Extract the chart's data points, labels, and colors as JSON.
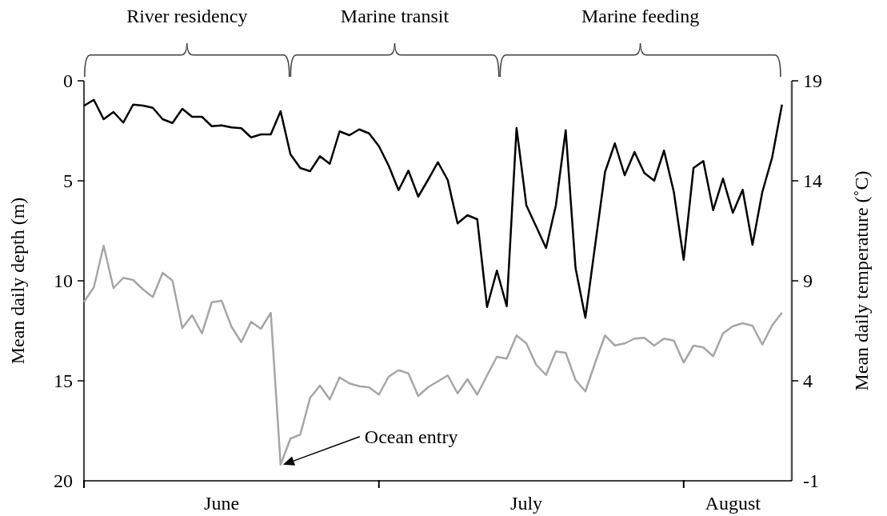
{
  "chart_data": {
    "type": "line",
    "x": [
      "--06-01",
      "--06-02",
      "--06-03",
      "--06-04",
      "--06-05",
      "--06-06",
      "--06-07",
      "--06-08",
      "--06-09",
      "--06-10",
      "--06-11",
      "--06-12",
      "--06-13",
      "--06-14",
      "--06-15",
      "--06-16",
      "--06-17",
      "--06-18",
      "--06-19",
      "--06-20",
      "--06-21",
      "--06-22",
      "--06-23",
      "--06-24",
      "--06-25",
      "--06-26",
      "--06-27",
      "--06-28",
      "--06-29",
      "--06-30",
      "--07-01",
      "--07-02",
      "--07-03",
      "--07-04",
      "--07-05",
      "--07-06",
      "--07-07",
      "--07-08",
      "--07-09",
      "--07-10",
      "--07-11",
      "--07-12",
      "--07-13",
      "--07-14",
      "--07-15",
      "--07-16",
      "--07-17",
      "--07-18",
      "--07-19",
      "--07-20",
      "--07-21",
      "--07-22",
      "--07-23",
      "--07-24",
      "--07-25",
      "--07-26",
      "--07-27",
      "--07-28",
      "--07-29",
      "--07-30",
      "--07-31",
      "--08-01",
      "--08-02",
      "--08-03",
      "--08-04",
      "--08-05",
      "--08-06",
      "--08-07",
      "--08-08",
      "--08-09",
      "--08-10",
      "--08-11"
    ],
    "series": [
      {
        "color": "#000000",
        "values": [
          1.25,
          0.95,
          1.92,
          1.56,
          2.09,
          1.19,
          1.24,
          1.35,
          1.92,
          2.11,
          1.4,
          1.8,
          1.8,
          2.27,
          2.23,
          2.33,
          2.37,
          2.83,
          2.68,
          2.68,
          1.52,
          3.67,
          4.36,
          4.52,
          3.77,
          4.15,
          2.53,
          2.72,
          2.43,
          2.63,
          3.27,
          4.25,
          5.47,
          4.49,
          5.79,
          4.95,
          4.07,
          4.96,
          7.13,
          6.72,
          6.92,
          11.31,
          9.49,
          11.27,
          2.36,
          6.23,
          7.29,
          8.36,
          6.23,
          2.47,
          9.36,
          11.85,
          8.2,
          4.56,
          3.13,
          4.72,
          3.56,
          4.61,
          4.99,
          3.49,
          5.56,
          8.95,
          4.36,
          4.01,
          6.47,
          4.89,
          6.6,
          5.45,
          8.2,
          5.56,
          3.83,
          1.19
        ]
      },
      {
        "color": "#a6a6a6",
        "axis": "y2",
        "values": [
          7.95,
          8.67,
          10.75,
          8.64,
          9.15,
          9.04,
          8.57,
          8.19,
          9.4,
          9.01,
          6.64,
          7.28,
          6.37,
          7.93,
          8.0,
          6.71,
          5.93,
          6.95,
          6.6,
          7.4,
          -0.19,
          1.11,
          1.31,
          3.15,
          3.76,
          3.07,
          4.17,
          3.87,
          3.73,
          3.67,
          3.31,
          4.21,
          4.53,
          4.37,
          3.24,
          3.68,
          3.97,
          4.27,
          3.37,
          4.08,
          3.31,
          4.27,
          5.2,
          5.11,
          6.27,
          5.87,
          4.8,
          4.29,
          5.47,
          5.4,
          4.04,
          3.47,
          4.91,
          6.27,
          5.77,
          5.87,
          6.11,
          6.15,
          5.76,
          6.11,
          6.01,
          4.91,
          5.76,
          5.67,
          5.23,
          6.37,
          6.73,
          6.88,
          6.75,
          5.81,
          6.77,
          7.41
        ]
      }
    ],
    "xlim": [
      "--06-01",
      "--08-12"
    ],
    "xticks": [
      {
        "value": "--06-01",
        "label": null
      },
      {
        "value": "--07-01",
        "label": null
      },
      {
        "value": "--08-01",
        "label": null
      },
      {
        "value": "--06-15",
        "label": "June"
      },
      {
        "value": "--07-16",
        "label": "July"
      },
      {
        "value": "--08-06",
        "label": "August"
      }
    ],
    "ylim": [
      20,
      0
    ],
    "yticks": [
      0,
      5,
      10,
      15,
      20
    ],
    "y2lim": [
      -1,
      19
    ],
    "y2ticks": [
      -1,
      4,
      9,
      14,
      19
    ],
    "ylabel": "Mean daily depth (m)",
    "y2label": "Mean daily temperature (˚C)",
    "annotations": [
      "River residency",
      "Marine transit",
      "Marine feeding",
      "Ocean entry"
    ],
    "grid": false,
    "marker": "none",
    "line_style": "solid"
  }
}
